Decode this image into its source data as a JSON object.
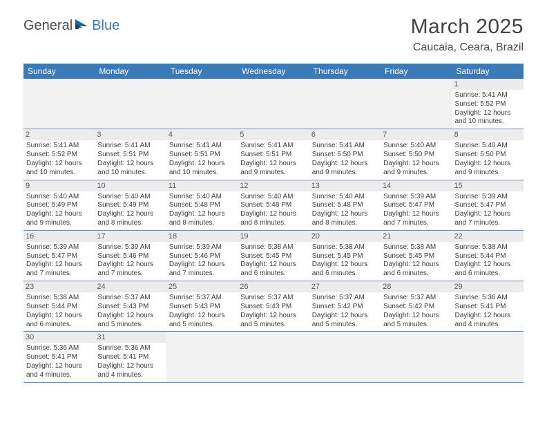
{
  "brand": {
    "part1": "General",
    "part2": "Blue"
  },
  "title": "March 2025",
  "location": "Caucaia, Ceara, Brazil",
  "colors": {
    "header_bg": "#3a7ab8",
    "header_text": "#ffffff",
    "daynum_bg": "#ececec",
    "empty_bg": "#f1f1f1",
    "cell_border": "#6990bd",
    "body_text": "#3c3c3c",
    "title_text": "#434343"
  },
  "weekdays": [
    "Sunday",
    "Monday",
    "Tuesday",
    "Wednesday",
    "Thursday",
    "Friday",
    "Saturday"
  ],
  "labels": {
    "sunrise": "Sunrise:",
    "sunset": "Sunset:",
    "daylight": "Daylight:"
  },
  "weeks": [
    [
      null,
      null,
      null,
      null,
      null,
      null,
      {
        "n": "1",
        "sr": "5:41 AM",
        "ss": "5:52 PM",
        "dl": "12 hours and 10 minutes."
      }
    ],
    [
      {
        "n": "2",
        "sr": "5:41 AM",
        "ss": "5:52 PM",
        "dl": "12 hours and 10 minutes."
      },
      {
        "n": "3",
        "sr": "5:41 AM",
        "ss": "5:51 PM",
        "dl": "12 hours and 10 minutes."
      },
      {
        "n": "4",
        "sr": "5:41 AM",
        "ss": "5:51 PM",
        "dl": "12 hours and 10 minutes."
      },
      {
        "n": "5",
        "sr": "5:41 AM",
        "ss": "5:51 PM",
        "dl": "12 hours and 9 minutes."
      },
      {
        "n": "6",
        "sr": "5:41 AM",
        "ss": "5:50 PM",
        "dl": "12 hours and 9 minutes."
      },
      {
        "n": "7",
        "sr": "5:40 AM",
        "ss": "5:50 PM",
        "dl": "12 hours and 9 minutes."
      },
      {
        "n": "8",
        "sr": "5:40 AM",
        "ss": "5:50 PM",
        "dl": "12 hours and 9 minutes."
      }
    ],
    [
      {
        "n": "9",
        "sr": "5:40 AM",
        "ss": "5:49 PM",
        "dl": "12 hours and 9 minutes."
      },
      {
        "n": "10",
        "sr": "5:40 AM",
        "ss": "5:49 PM",
        "dl": "12 hours and 8 minutes."
      },
      {
        "n": "11",
        "sr": "5:40 AM",
        "ss": "5:48 PM",
        "dl": "12 hours and 8 minutes."
      },
      {
        "n": "12",
        "sr": "5:40 AM",
        "ss": "5:48 PM",
        "dl": "12 hours and 8 minutes."
      },
      {
        "n": "13",
        "sr": "5:40 AM",
        "ss": "5:48 PM",
        "dl": "12 hours and 8 minutes."
      },
      {
        "n": "14",
        "sr": "5:39 AM",
        "ss": "5:47 PM",
        "dl": "12 hours and 7 minutes."
      },
      {
        "n": "15",
        "sr": "5:39 AM",
        "ss": "5:47 PM",
        "dl": "12 hours and 7 minutes."
      }
    ],
    [
      {
        "n": "16",
        "sr": "5:39 AM",
        "ss": "5:47 PM",
        "dl": "12 hours and 7 minutes."
      },
      {
        "n": "17",
        "sr": "5:39 AM",
        "ss": "5:46 PM",
        "dl": "12 hours and 7 minutes."
      },
      {
        "n": "18",
        "sr": "5:39 AM",
        "ss": "5:46 PM",
        "dl": "12 hours and 7 minutes."
      },
      {
        "n": "19",
        "sr": "5:38 AM",
        "ss": "5:45 PM",
        "dl": "12 hours and 6 minutes."
      },
      {
        "n": "20",
        "sr": "5:38 AM",
        "ss": "5:45 PM",
        "dl": "12 hours and 6 minutes."
      },
      {
        "n": "21",
        "sr": "5:38 AM",
        "ss": "5:45 PM",
        "dl": "12 hours and 6 minutes."
      },
      {
        "n": "22",
        "sr": "5:38 AM",
        "ss": "5:44 PM",
        "dl": "12 hours and 6 minutes."
      }
    ],
    [
      {
        "n": "23",
        "sr": "5:38 AM",
        "ss": "5:44 PM",
        "dl": "12 hours and 6 minutes."
      },
      {
        "n": "24",
        "sr": "5:37 AM",
        "ss": "5:43 PM",
        "dl": "12 hours and 5 minutes."
      },
      {
        "n": "25",
        "sr": "5:37 AM",
        "ss": "5:43 PM",
        "dl": "12 hours and 5 minutes."
      },
      {
        "n": "26",
        "sr": "5:37 AM",
        "ss": "5:43 PM",
        "dl": "12 hours and 5 minutes."
      },
      {
        "n": "27",
        "sr": "5:37 AM",
        "ss": "5:42 PM",
        "dl": "12 hours and 5 minutes."
      },
      {
        "n": "28",
        "sr": "5:37 AM",
        "ss": "5:42 PM",
        "dl": "12 hours and 5 minutes."
      },
      {
        "n": "29",
        "sr": "5:36 AM",
        "ss": "5:41 PM",
        "dl": "12 hours and 4 minutes."
      }
    ],
    [
      {
        "n": "30",
        "sr": "5:36 AM",
        "ss": "5:41 PM",
        "dl": "12 hours and 4 minutes."
      },
      {
        "n": "31",
        "sr": "5:36 AM",
        "ss": "5:41 PM",
        "dl": "12 hours and 4 minutes."
      },
      null,
      null,
      null,
      null,
      null
    ]
  ]
}
